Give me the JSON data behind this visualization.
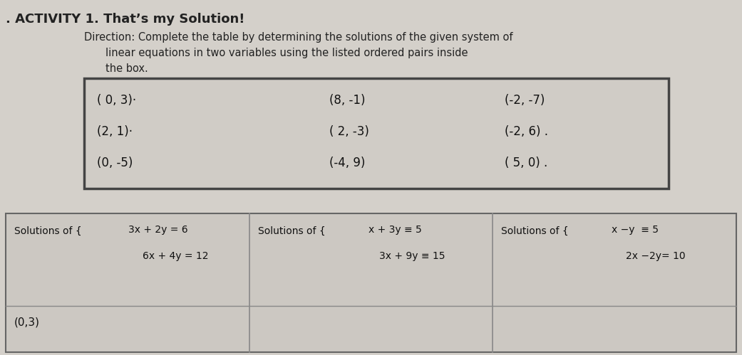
{
  "title": ". ACTIVITY 1. That’s my Solution!",
  "dir_line1": "Direction: Complete the table by determining the solutions of the given system of",
  "dir_line2": "linear equations in two variables using the listed ordered pairs inside",
  "dir_line3": "the box.",
  "box_col1": [
    "( 0, 3)·",
    "(2, 1)·",
    "(0, -5)"
  ],
  "box_col2": [
    "(8, -1)",
    "( 2, -3)",
    "(-4, 9)"
  ],
  "box_col3": [
    "(-2, -7)",
    "(-2, 6) .",
    "( 5, 0) ."
  ],
  "tbl_c1_sys1": "3x + 2y = 6",
  "tbl_c1_sys2": "6x + 4y = 12",
  "tbl_c2_sys1": "x + 3y ≡ 5",
  "tbl_c2_sys2": "3x + 9y ≡ 15",
  "tbl_c3_sys1": "x −y  ≡ 5",
  "tbl_c3_sys2": "2x −2y= 10",
  "sol_prefix": "Solutions of {",
  "row1_c1": "(0,3)",
  "bg_color": "#c8c4be",
  "paper_color": "#d4d0ca",
  "box_bg": "#ccc8c2",
  "tbl_bg": "#ccc8c2"
}
